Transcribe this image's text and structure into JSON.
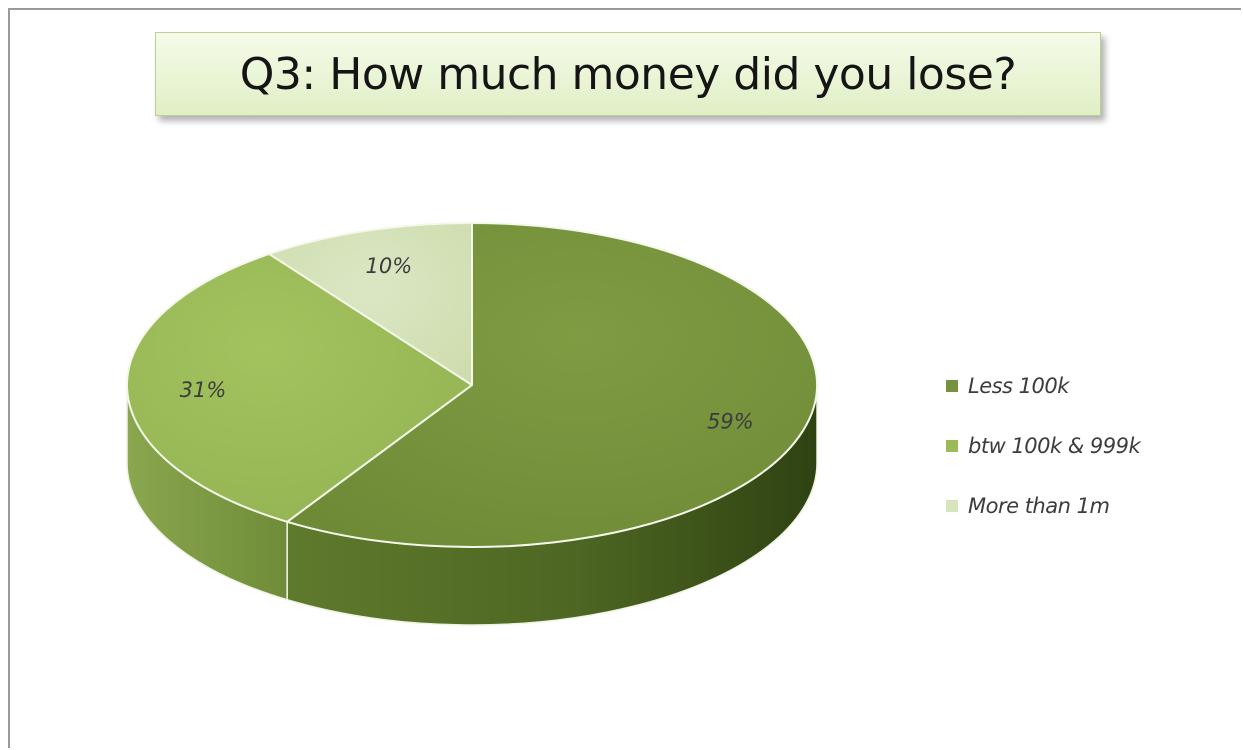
{
  "chart_data": {
    "type": "pie",
    "title": "Q3: How much money did you lose?",
    "categories": [
      "Less 100k",
      "btw 100k & 999k",
      "More than 1m"
    ],
    "values": [
      59,
      31,
      10
    ],
    "data_labels": [
      "59%",
      "31%",
      "10%"
    ],
    "colors": [
      "#76923c",
      "#9bbb59",
      "#d7e4bd"
    ],
    "legend_position": "right",
    "style": "3d"
  }
}
